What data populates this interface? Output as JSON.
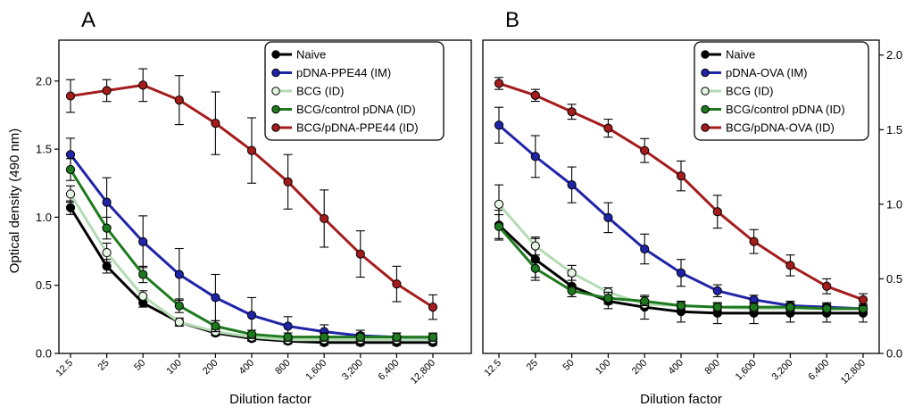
{
  "chart_data": [
    {
      "type": "line",
      "panel_label": "A",
      "xlabel": "Dilution factor",
      "ylabel": "Optical density (490 nm)",
      "y_axis_side": "left",
      "ylim": [
        0,
        2.3
      ],
      "yticks": [
        "0.0",
        "0.5",
        "1.0",
        "1.5",
        "2.0"
      ],
      "categories": [
        "12.5",
        "25",
        "50",
        "100",
        "200",
        "400",
        "800",
        "1,600",
        "3,200",
        "6,400",
        "12,800"
      ],
      "legend_position": "top-right",
      "series": [
        {
          "name": "Naive",
          "color": "#000000",
          "marker_fill": "#000000",
          "values": [
            1.07,
            0.64,
            0.37,
            0.23,
            0.15,
            0.11,
            0.09,
            0.08,
            0.08,
            0.08,
            0.08
          ],
          "errors": [
            0.05,
            0.05,
            0.03,
            0.02,
            0.02,
            0.02,
            0.02,
            0.02,
            0.02,
            0.02,
            0.02
          ]
        },
        {
          "name": "pDNA-PPE44 (IM)",
          "color": "#1f24a8",
          "marker_fill": "#1f24a8",
          "values": [
            1.46,
            1.11,
            0.82,
            0.58,
            0.41,
            0.28,
            0.2,
            0.16,
            0.13,
            0.12,
            0.11
          ],
          "errors": [
            0.12,
            0.18,
            0.19,
            0.19,
            0.17,
            0.13,
            0.07,
            0.05,
            0.04,
            0.03,
            0.03
          ]
        },
        {
          "name": "BCG (ID)",
          "color": "#b4dcb4",
          "marker_fill": "#e6f4e6",
          "values": [
            1.17,
            0.74,
            0.42,
            0.23,
            0.16,
            0.12,
            0.1,
            0.1,
            0.1,
            0.1,
            0.1
          ],
          "errors": [
            0.06,
            0.07,
            0.04,
            0.03,
            0.02,
            0.02,
            0.02,
            0.02,
            0.02,
            0.02,
            0.02
          ]
        },
        {
          "name": "BCG/control pDNA (ID)",
          "color": "#1e7a1e",
          "marker_fill": "#1e7a1e",
          "values": [
            1.35,
            0.92,
            0.58,
            0.35,
            0.2,
            0.14,
            0.12,
            0.12,
            0.12,
            0.12,
            0.12
          ],
          "errors": [
            0.08,
            0.08,
            0.06,
            0.05,
            0.04,
            0.03,
            0.03,
            0.03,
            0.03,
            0.03,
            0.03
          ]
        },
        {
          "name": "BCG/pDNA-PPE44 (ID)",
          "color": "#a51c1c",
          "marker_fill": "#a51c1c",
          "values": [
            1.89,
            1.93,
            1.97,
            1.86,
            1.69,
            1.49,
            1.26,
            0.99,
            0.73,
            0.51,
            0.34
          ],
          "errors": [
            0.12,
            0.08,
            0.12,
            0.18,
            0.23,
            0.24,
            0.2,
            0.21,
            0.17,
            0.13,
            0.09
          ]
        }
      ]
    },
    {
      "type": "line",
      "panel_label": "B",
      "xlabel": "Dilution factor",
      "ylabel": "",
      "y_axis_side": "right",
      "ylim": [
        0,
        2.1
      ],
      "yticks": [
        "0.0",
        "0.5",
        "1.0",
        "1.5",
        "2.0"
      ],
      "categories": [
        "12.5",
        "25",
        "50",
        "100",
        "200",
        "400",
        "800",
        "1,600",
        "3,200",
        "6,400",
        "12,800"
      ],
      "legend_position": "top-right",
      "series": [
        {
          "name": "Naive",
          "color": "#000000",
          "marker_fill": "#000000",
          "values": [
            0.86,
            0.63,
            0.45,
            0.35,
            0.31,
            0.28,
            0.27,
            0.27,
            0.27,
            0.27,
            0.27
          ],
          "errors": [
            0.1,
            0.14,
            0.07,
            0.05,
            0.08,
            0.07,
            0.07,
            0.07,
            0.06,
            0.06,
            0.06
          ]
        },
        {
          "name": "pDNA-OVA (IM)",
          "color": "#1f24a8",
          "marker_fill": "#1f24a8",
          "values": [
            1.53,
            1.32,
            1.13,
            0.91,
            0.7,
            0.54,
            0.42,
            0.36,
            0.32,
            0.31,
            0.3
          ],
          "errors": [
            0.12,
            0.14,
            0.12,
            0.1,
            0.1,
            0.09,
            0.04,
            0.03,
            0.03,
            0.03,
            0.03
          ]
        },
        {
          "name": "BCG (ID)",
          "color": "#b4dcb4",
          "marker_fill": "#e6f4e6",
          "values": [
            1.0,
            0.72,
            0.54,
            0.41,
            0.33,
            0.32,
            0.31,
            0.3,
            0.3,
            0.3,
            0.3
          ],
          "errors": [
            0.13,
            0.06,
            0.05,
            0.03,
            0.03,
            0.02,
            0.02,
            0.02,
            0.02,
            0.02,
            0.02
          ]
        },
        {
          "name": "BCG/control pDNA (ID)",
          "color": "#1e7a1e",
          "marker_fill": "#1e7a1e",
          "values": [
            0.85,
            0.57,
            0.42,
            0.37,
            0.35,
            0.32,
            0.31,
            0.31,
            0.31,
            0.3,
            0.3
          ],
          "errors": [
            0.08,
            0.06,
            0.04,
            0.04,
            0.03,
            0.03,
            0.03,
            0.03,
            0.03,
            0.03,
            0.03
          ]
        },
        {
          "name": "BCG/pDNA-OVA (ID)",
          "color": "#a51c1c",
          "marker_fill": "#a51c1c",
          "values": [
            1.81,
            1.73,
            1.62,
            1.51,
            1.36,
            1.19,
            0.95,
            0.75,
            0.59,
            0.45,
            0.36
          ],
          "errors": [
            0.04,
            0.04,
            0.05,
            0.06,
            0.08,
            0.1,
            0.11,
            0.08,
            0.07,
            0.05,
            0.04
          ]
        }
      ]
    }
  ]
}
